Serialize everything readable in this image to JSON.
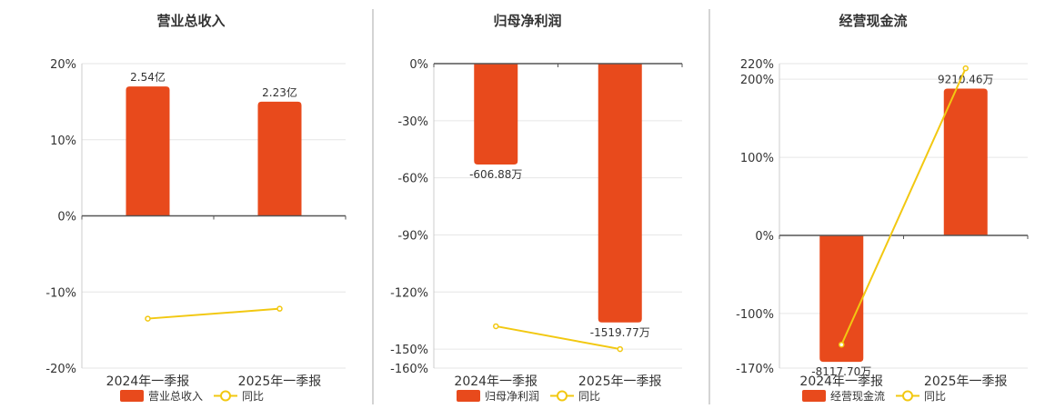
{
  "colors": {
    "bar": "#e84a1c",
    "line": "#f2c811",
    "grid": "#e6e6e6",
    "axis": "#555555",
    "text": "#333333",
    "divider": "#aaaaaa"
  },
  "chart_data": [
    {
      "type": "bar",
      "title": "营业总收入",
      "categories": [
        "2024年一季报",
        "2025年一季报"
      ],
      "series": [
        {
          "name": "营业总收入",
          "type": "bar",
          "values": [
            17,
            15
          ],
          "labels": [
            "2.54亿",
            "2.23亿"
          ]
        },
        {
          "name": "同比",
          "type": "line",
          "values": [
            -13.5,
            -12.2
          ]
        }
      ],
      "ylim": [
        -20,
        20
      ],
      "yticks": [
        20,
        10,
        0,
        -10,
        -20
      ],
      "ytick_labels": [
        "20%",
        "10%",
        "0%",
        "-10%",
        "-20%"
      ],
      "grid": true,
      "legend": "bottom"
    },
    {
      "type": "bar",
      "title": "归母净利润",
      "categories": [
        "2024年一季报",
        "2025年一季报"
      ],
      "series": [
        {
          "name": "归母净利润",
          "type": "bar",
          "values": [
            -53,
            -136
          ],
          "labels": [
            "-606.88万",
            "-1519.77万"
          ]
        },
        {
          "name": "同比",
          "type": "line",
          "values": [
            -138,
            -150
          ]
        }
      ],
      "ylim": [
        -160,
        0
      ],
      "yticks": [
        0,
        -30,
        -60,
        -90,
        -120,
        -150,
        -160
      ],
      "ytick_labels": [
        "0%",
        "-30%",
        "-60%",
        "-90%",
        "-120%",
        "-150%",
        "-160%"
      ],
      "grid": true,
      "legend": "bottom"
    },
    {
      "type": "bar",
      "title": "经营现金流",
      "categories": [
        "2024年一季报",
        "2025年一季报"
      ],
      "series": [
        {
          "name": "经营现金流",
          "type": "bar",
          "values": [
            -162,
            188
          ],
          "labels": [
            "-8117.70万",
            "9210.46万"
          ]
        },
        {
          "name": "同比",
          "type": "line",
          "values": [
            -140,
            214
          ]
        }
      ],
      "ylim": [
        -170,
        220
      ],
      "yticks": [
        220,
        200,
        100,
        0,
        -100,
        -170
      ],
      "ytick_labels": [
        "220%",
        "200%",
        "100%",
        "0%",
        "-100%",
        "-170%"
      ],
      "grid": true,
      "legend": "bottom"
    }
  ]
}
